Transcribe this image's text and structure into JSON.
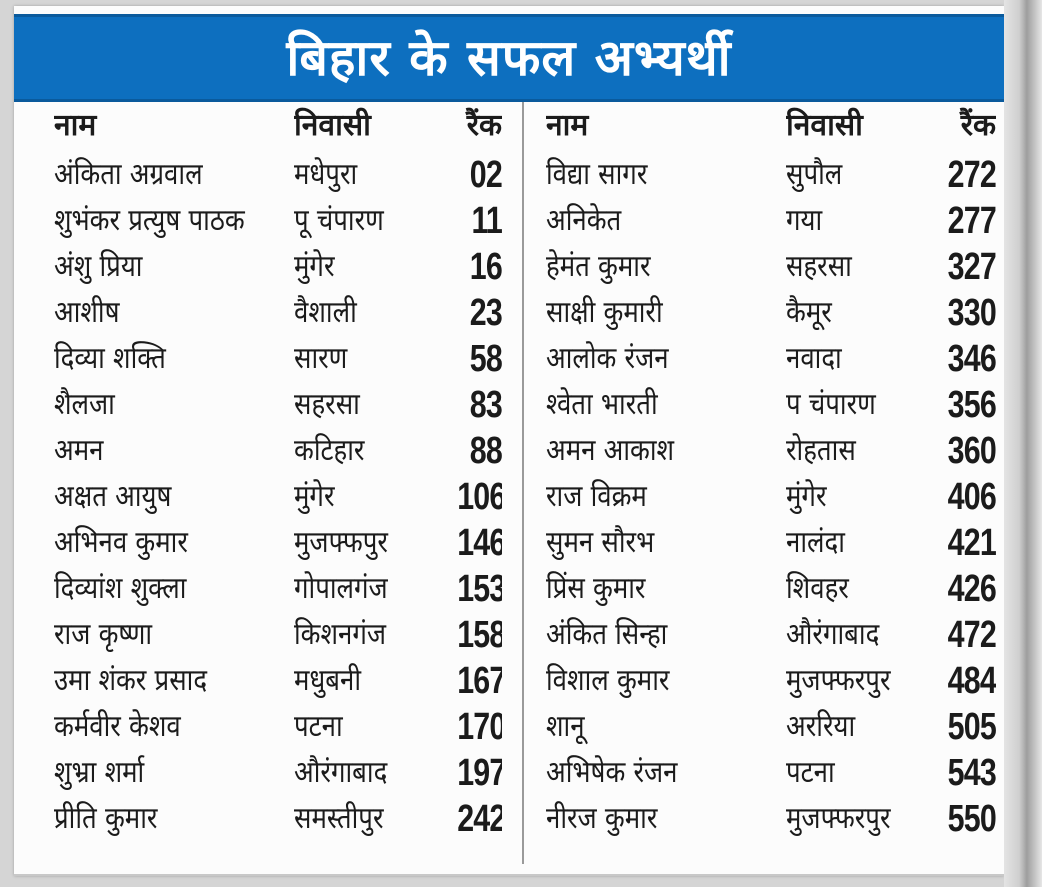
{
  "title": "बिहार के सफल अभ्यर्थी",
  "headers": {
    "name": "नाम",
    "place": "निवासी",
    "rank": "रैंक"
  },
  "left_rows": [
    {
      "name": "अंकिता अग्रवाल",
      "place": "मधेपुरा",
      "rank": "02"
    },
    {
      "name": "शुभंकर प्रत्युष पाठक",
      "place": "पू चंपारण",
      "rank": "11"
    },
    {
      "name": "अंशु प्रिया",
      "place": "मुंगेर",
      "rank": "16"
    },
    {
      "name": "आशीष",
      "place": "वैशाली",
      "rank": "23"
    },
    {
      "name": "दिव्या शक्ति",
      "place": "सारण",
      "rank": "58"
    },
    {
      "name": "शैलजा",
      "place": "सहरसा",
      "rank": "83"
    },
    {
      "name": "अमन",
      "place": "कटिहार",
      "rank": "88"
    },
    {
      "name": "अक्षत आयुष",
      "place": "मुंगेर",
      "rank": "106"
    },
    {
      "name": "अभिनव कुमार",
      "place": "मुजफ्फपुर",
      "rank": "146"
    },
    {
      "name": "दिव्यांश शुक्ला",
      "place": "गोपालगंज",
      "rank": "153"
    },
    {
      "name": "राज कृष्णा",
      "place": "किशनगंज",
      "rank": "158"
    },
    {
      "name": "उमा शंकर प्रसाद",
      "place": "मधुबनी",
      "rank": "167"
    },
    {
      "name": "कर्मवीर केशव",
      "place": "पटना",
      "rank": "170"
    },
    {
      "name": "शुभ्रा शर्मा",
      "place": "औरंगाबाद",
      "rank": "197"
    },
    {
      "name": "प्रीति कुमार",
      "place": "समस्तीपुर",
      "rank": "242"
    }
  ],
  "right_rows": [
    {
      "name": "विद्या सागर",
      "place": "सुपौल",
      "rank": "272"
    },
    {
      "name": "अनिकेत",
      "place": "गया",
      "rank": "277"
    },
    {
      "name": "हेमंत कुमार",
      "place": "सहरसा",
      "rank": "327"
    },
    {
      "name": "साक्षी कुमारी",
      "place": "कैमूर",
      "rank": "330"
    },
    {
      "name": "आलोक रंजन",
      "place": "नवादा",
      "rank": "346"
    },
    {
      "name": "श्वेता भारती",
      "place": "प चंपारण",
      "rank": "356"
    },
    {
      "name": "अमन आकाश",
      "place": "रोहतास",
      "rank": "360"
    },
    {
      "name": "राज विक्रम",
      "place": "मुंगेर",
      "rank": "406"
    },
    {
      "name": "सुमन सौरभ",
      "place": "नालंदा",
      "rank": "421"
    },
    {
      "name": "प्रिंस कुमार",
      "place": "शिवहर",
      "rank": "426"
    },
    {
      "name": "अंकित सिन्हा",
      "place": "औरंगाबाद",
      "rank": "472"
    },
    {
      "name": "विशाल कुमार",
      "place": "मुजफ्फरपुर",
      "rank": "484"
    },
    {
      "name": "शानू",
      "place": "अररिया",
      "rank": "505"
    },
    {
      "name": "अभिषेक रंजन",
      "place": "पटना",
      "rank": "543"
    },
    {
      "name": "नीरज कुमार",
      "place": "मुजफ्फरपुर",
      "rank": "550"
    }
  ],
  "colors": {
    "banner": "#0d6fbf",
    "text": "#1b1b1b"
  }
}
